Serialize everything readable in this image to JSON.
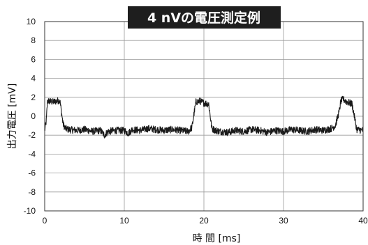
{
  "chart_data": {
    "type": "line",
    "title": "4 nVの電圧測定例",
    "xlabel": "時 間 [ms]",
    "ylabel": "出力電圧 [mV]",
    "xlim": [
      0,
      40
    ],
    "ylim": [
      -10,
      10
    ],
    "xticks": [
      0,
      10,
      20,
      30,
      40
    ],
    "yticks": [
      -10,
      -8,
      -6,
      -4,
      -2,
      0,
      2,
      4,
      6,
      8,
      10
    ],
    "grid": true,
    "legend": "none",
    "colors": {
      "line": "#1a1a1a",
      "grid": "#9a9a9a",
      "frame": "#333333",
      "title_bg": "#1e1e1e",
      "title_fg": "#ffffff"
    },
    "series": [
      {
        "x": [
          0,
          0.2,
          0.35,
          0.5,
          1.0,
          1.5,
          1.9,
          2.1,
          2.3,
          2.6,
          3,
          4,
          5,
          6,
          7,
          7.5,
          8,
          9,
          10,
          10.5,
          11,
          12,
          13,
          14,
          15,
          16,
          17,
          18,
          18.5,
          18.8,
          19.0,
          19.5,
          20.0,
          20.6,
          20.8,
          21.0,
          21.5,
          22,
          23,
          24,
          25,
          26,
          27,
          28,
          29,
          30,
          31,
          32,
          33,
          34,
          35,
          36,
          36.5,
          37.0,
          37.2,
          37.5,
          38.0,
          38.6,
          38.9,
          39.2,
          40
        ],
        "y": [
          -1.5,
          -0.5,
          1.6,
          1.6,
          1.5,
          1.6,
          1.7,
          0.5,
          -0.8,
          -1.3,
          -1.4,
          -1.5,
          -1.4,
          -1.6,
          -1.5,
          -2.0,
          -1.6,
          -1.5,
          -1.5,
          -1.8,
          -1.4,
          -1.5,
          -1.3,
          -1.4,
          -1.5,
          -1.4,
          -1.5,
          -1.6,
          -1.2,
          0.5,
          1.5,
          1.6,
          1.4,
          1.3,
          0.0,
          -1.3,
          -1.5,
          -1.6,
          -1.7,
          -1.5,
          -1.6,
          -1.4,
          -1.5,
          -1.7,
          -1.5,
          -1.6,
          -1.4,
          -1.5,
          -1.6,
          -1.4,
          -1.5,
          -1.3,
          -1.0,
          0.5,
          1.6,
          1.8,
          1.5,
          1.3,
          0.0,
          -1.4,
          -1.5
        ]
      }
    ]
  }
}
